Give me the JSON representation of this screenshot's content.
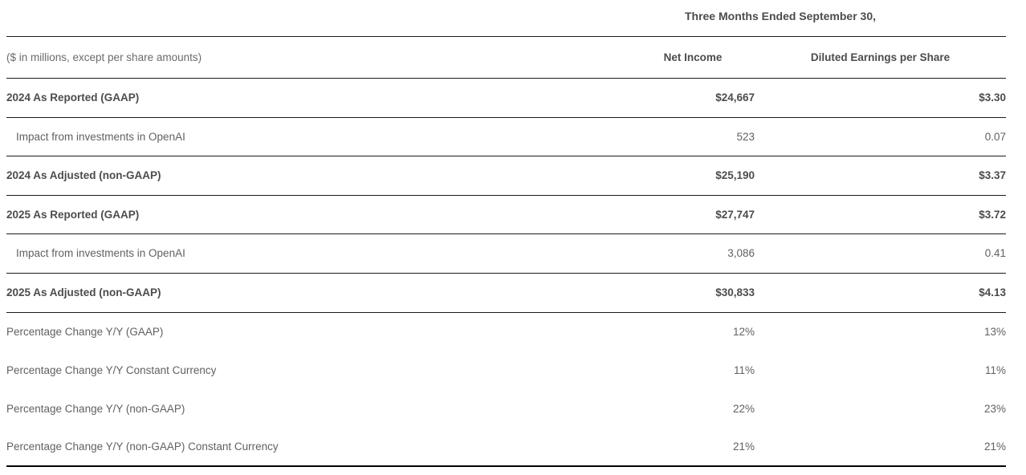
{
  "table": {
    "period_title": "Three Months Ended September 30,",
    "units_note": "($ in millions, except per share amounts)",
    "columns": {
      "net_income": "Net Income",
      "diluted_eps": "Diluted Earnings per Share"
    },
    "rows": [
      {
        "label": "2024 As Reported (GAAP)",
        "net_income": "$24,667",
        "diluted_eps": "$3.30"
      },
      {
        "label": "Impact from investments in OpenAI",
        "net_income": "523",
        "diluted_eps": "0.07"
      },
      {
        "label": "2024 As Adjusted (non-GAAP)",
        "net_income": "$25,190",
        "diluted_eps": "$3.37"
      },
      {
        "label": "2025 As Reported (GAAP)",
        "net_income": "$27,747",
        "diluted_eps": "$3.72"
      },
      {
        "label": "Impact from investments in OpenAI",
        "net_income": "3,086",
        "diluted_eps": "0.41"
      },
      {
        "label": "2025 As Adjusted (non-GAAP)",
        "net_income": "$30,833",
        "diluted_eps": "$4.13"
      },
      {
        "label": "Percentage Change Y/Y (GAAP)",
        "net_income": "12%",
        "diluted_eps": "13%"
      },
      {
        "label": "Percentage Change Y/Y Constant Currency",
        "net_income": "11%",
        "diluted_eps": "11%"
      },
      {
        "label": "Percentage Change Y/Y (non-GAAP)",
        "net_income": "22%",
        "diluted_eps": "23%"
      },
      {
        "label": "Percentage Change Y/Y (non-GAAP) Constant Currency",
        "net_income": "21%",
        "diluted_eps": "21%"
      }
    ]
  }
}
